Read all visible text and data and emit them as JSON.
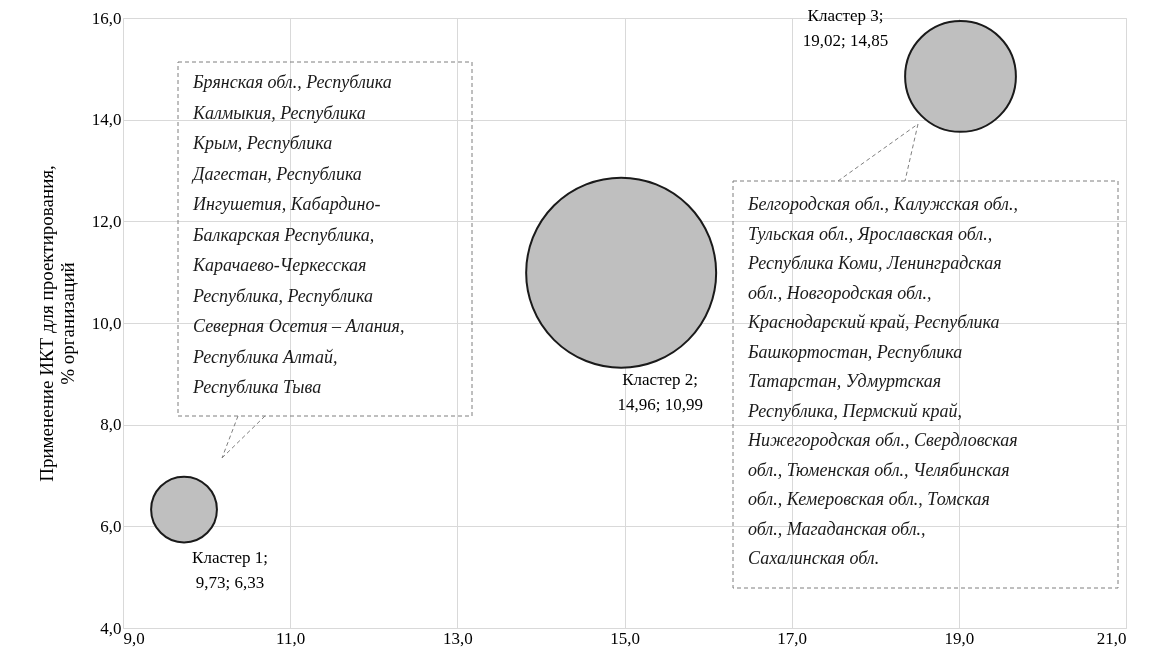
{
  "chart_data": {
    "type": "bubble",
    "ylabel": "Применение ИКТ для проектирования,\n% организаций",
    "x": [
      9.73,
      14.96,
      19.02
    ],
    "values": [
      6.33,
      10.99,
      14.85
    ],
    "sizes": [
      0.12,
      1,
      0.34
    ],
    "colors": [
      "#bfbfbf",
      "#bfbfbf",
      "#bfbfbf"
    ],
    "value_labels": [
      "Кластер 1;\n9,73; 6,33",
      "Кластер 2;\n14,96; 10,99",
      "Кластер 3;\n19,02; 14,85"
    ],
    "xlim": [
      9,
      21
    ],
    "xticks": [
      {
        "value": 9,
        "label": "9,0"
      },
      {
        "value": 11,
        "label": "11,0"
      },
      {
        "value": 13,
        "label": "13,0"
      },
      {
        "value": 15,
        "label": "15,0"
      },
      {
        "value": 17,
        "label": "17,0"
      },
      {
        "value": 19,
        "label": "19,0"
      },
      {
        "value": 21,
        "label": "21,0"
      }
    ],
    "ylim": [
      4,
      16
    ],
    "yticks": [
      {
        "value": 4,
        "label": "4,0"
      },
      {
        "value": 6,
        "label": "6,0"
      },
      {
        "value": 8,
        "label": "8,0"
      },
      {
        "value": 10,
        "label": "10,0"
      },
      {
        "value": 12,
        "label": "12,0"
      },
      {
        "value": 14,
        "label": "14,0"
      },
      {
        "value": 16,
        "label": "16,0"
      }
    ],
    "grid": true,
    "annotations": [
      "Брянская обл., Республика\nКалмыкия, Республика\nКрым, Республика\nДагестан, Республика\nИнгушетия, Кабардино-\nБалкарская Республика,\nКарачаево-Черкесская\nРеспублика, Республика\nСеверная Осетия – Алания,\nРеспублика Алтай,\nРеспублика Тыва",
      "Белгородская обл., Калужская обл.,\nТульская обл., Ярославская обл.,\nРеспублика Коми, Ленинградская\nобл., Новгородская обл.,\nКраснодарский край, Республика\nБашкортостан, Республика\nТатарстан, Удмуртская\nРеспублика, Пермский край,\nНижегородская обл., Свердловская\nобл., Тюменская обл., Челябинская\nобл., Кемеровская обл., Томская\nобл., Магаданская обл.,\nСахалинская обл."
    ]
  }
}
